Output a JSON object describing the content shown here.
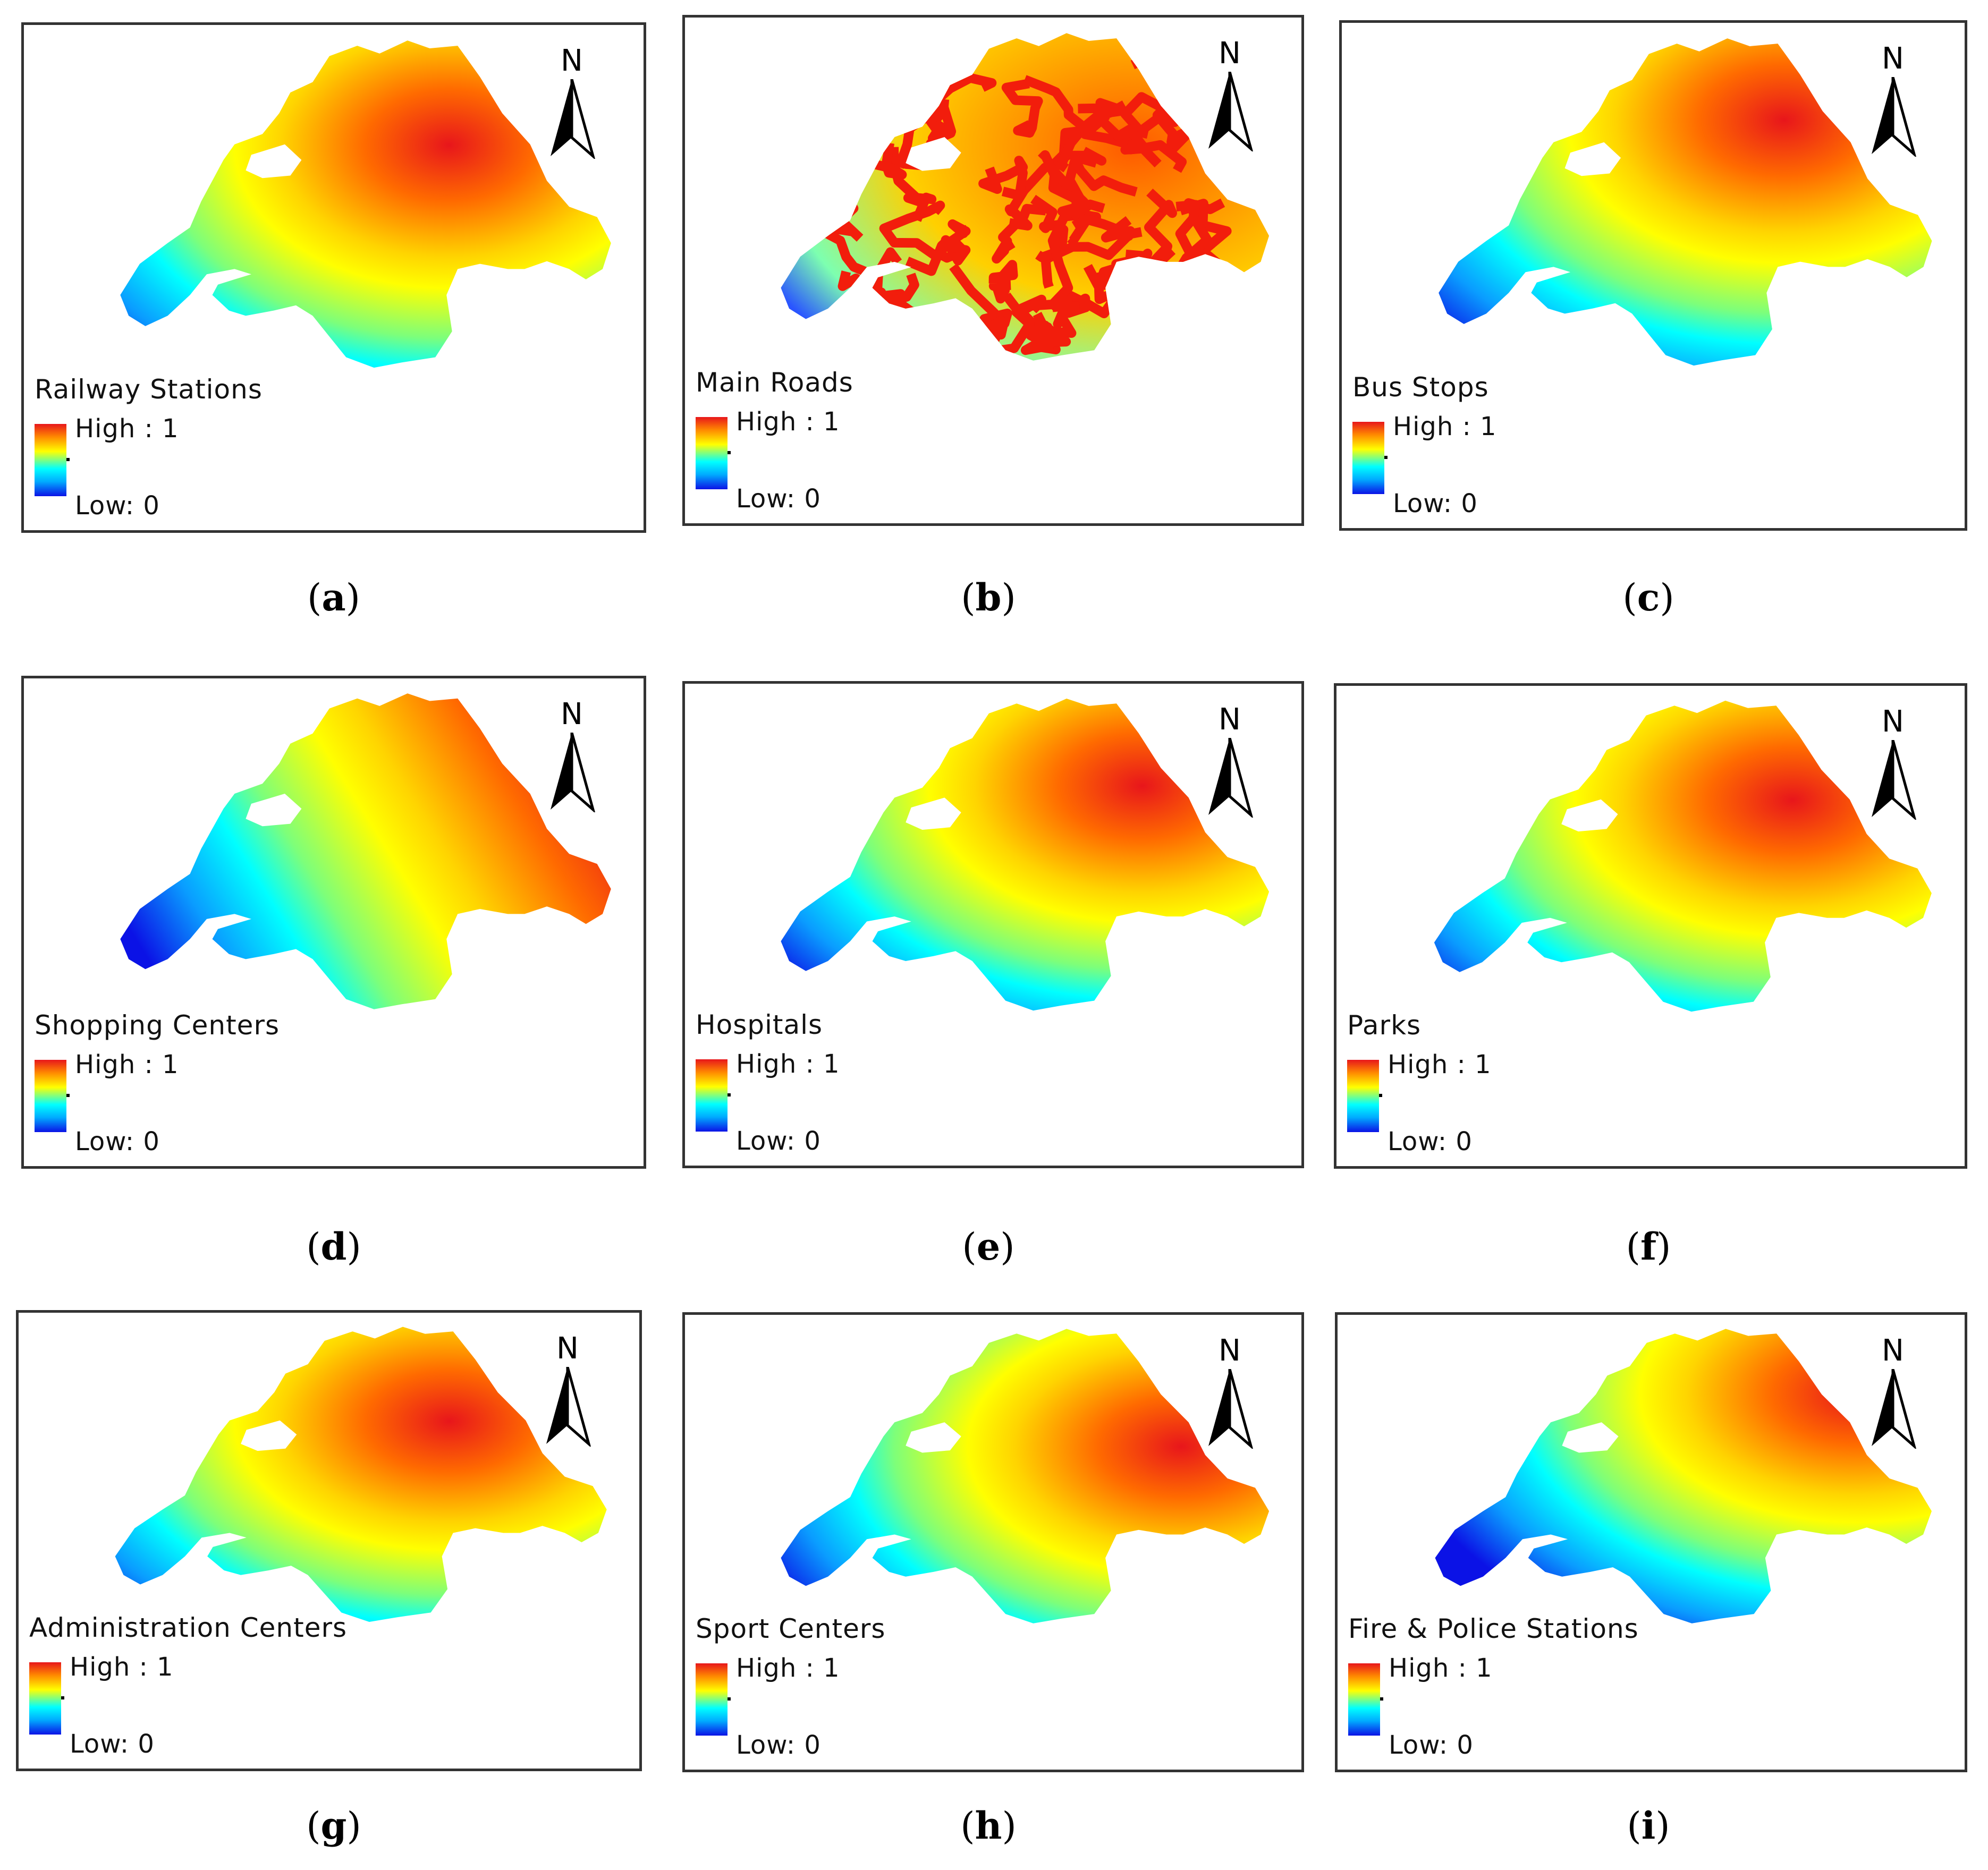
{
  "north_label": "N",
  "legend_high": "High : 1",
  "legend_low": "Low: 0",
  "colors": {
    "high": "#e8161b",
    "mid": "#ffff00",
    "low": "#0b12e6",
    "road": "#f21d0c"
  },
  "panels": [
    {
      "id": "a",
      "title": "Railway Stations",
      "caption_letter": "a",
      "hotspot": [
        0.67,
        0.32
      ],
      "style": "radial"
    },
    {
      "id": "b",
      "title": "Main Roads",
      "caption_letter": "b",
      "style": "roads"
    },
    {
      "id": "c",
      "title": "Bus Stops",
      "caption_letter": "c",
      "hotspot": [
        0.7,
        0.25
      ],
      "style": "radial"
    },
    {
      "id": "d",
      "title": "Shopping Centers",
      "caption_letter": "d",
      "hotspot": [
        0.92,
        0.56
      ],
      "style": "linear"
    },
    {
      "id": "e",
      "title": "Hospitals",
      "caption_letter": "e",
      "hotspot": [
        0.74,
        0.28
      ],
      "style": "radial"
    },
    {
      "id": "f",
      "title": "Parks",
      "caption_letter": "f",
      "hotspot": [
        0.72,
        0.32
      ],
      "style": "radial"
    },
    {
      "id": "g",
      "title": "Administration Centers",
      "caption_letter": "g",
      "hotspot": [
        0.68,
        0.32
      ],
      "style": "radial"
    },
    {
      "id": "h",
      "title": "Sport Centers",
      "caption_letter": "h",
      "hotspot": [
        0.82,
        0.4
      ],
      "style": "radial"
    },
    {
      "id": "i",
      "title": "Fire & Police Stations",
      "caption_letter": "i",
      "hotspot": [
        0.85,
        0.22
      ],
      "style": "radial"
    }
  ]
}
